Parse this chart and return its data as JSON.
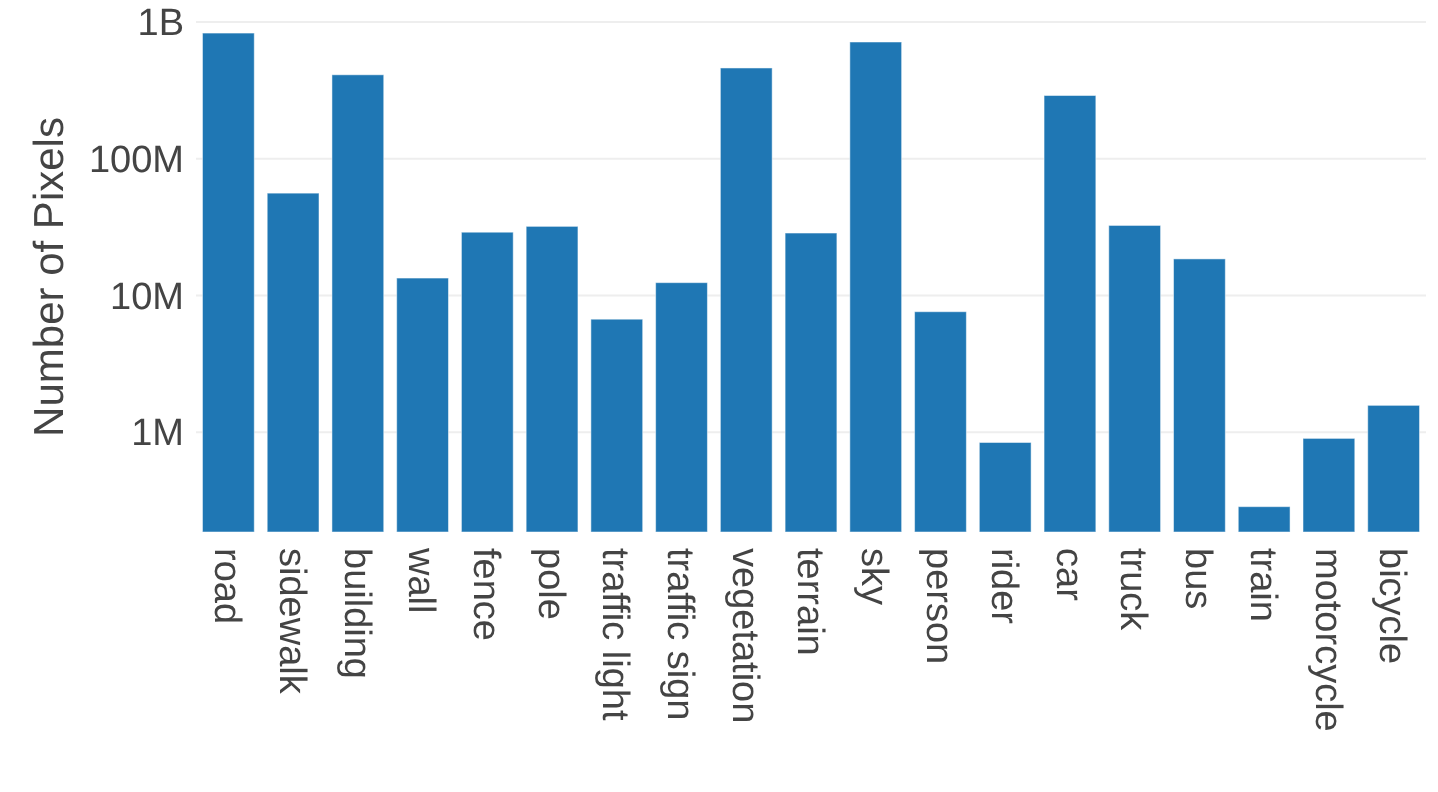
{
  "chart_data": {
    "type": "bar",
    "ylabel": "Number of Pixels",
    "categories": [
      "road",
      "sidewalk",
      "building",
      "wall",
      "fence",
      "pole",
      "traffic light",
      "traffic sign",
      "vegetation",
      "terrain",
      "sky",
      "person",
      "rider",
      "car",
      "truck",
      "bus",
      "train",
      "motorcycle",
      "bicycle"
    ],
    "values": [
      830000000,
      56000000,
      411000000,
      13400000,
      29000000,
      32000000,
      6700000,
      12400000,
      461000000,
      28600000,
      714000000,
      7600000,
      840000,
      290000000,
      32500000,
      18500000,
      285000,
      900000,
      1570000
    ],
    "color": "#1f77b4",
    "log": true,
    "ylim": [
      186000,
      1000000000
    ],
    "yticks": [
      {
        "value": 1000000,
        "label": "1M"
      },
      {
        "value": 10000000,
        "label": "10M"
      },
      {
        "value": 100000000,
        "label": "100M"
      },
      {
        "value": 1000000000,
        "label": "1B"
      }
    ],
    "grid": "y"
  }
}
